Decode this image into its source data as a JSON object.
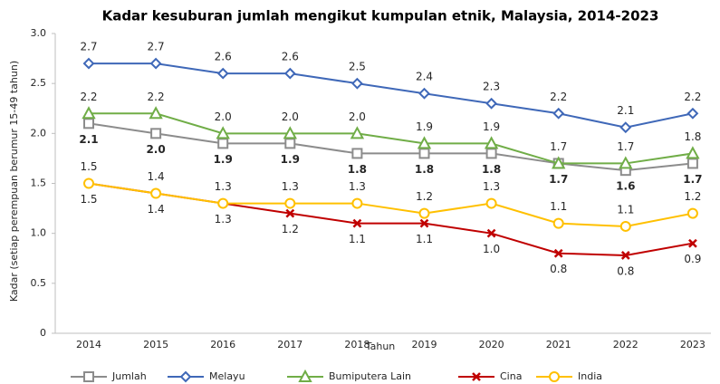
{
  "chart_data": {
    "type": "line",
    "title": "Kadar kesuburan jumlah mengikut kumpulan etnik, Malaysia, 2014-2023",
    "x_label": "Tahun",
    "y_label": "Kadar (setiap perempuan berumur 15-49 tahun)",
    "categories": [
      "2014",
      "2015",
      "2016",
      "2017",
      "2018",
      "2019",
      "2020",
      "2021",
      "2022",
      "2023"
    ],
    "ylim": [
      0,
      3
    ],
    "yticks": [
      0,
      0.5,
      {
        "value": 1,
        "label": "1.0"
      },
      1.5,
      {
        "value": 2,
        "label": "2.0"
      },
      2.5,
      {
        "value": 3,
        "label": "3.0"
      }
    ],
    "grid": false,
    "legend": "bottom",
    "series": [
      {
        "name": "Jumlah",
        "color": "#8c8c8c",
        "marker": "square",
        "values": [
          2.1,
          2.0,
          1.9,
          1.9,
          1.8,
          1.8,
          1.8,
          1.7,
          1.63,
          1.7
        ],
        "value_labels": [
          "2.1",
          "2.0",
          "1.9",
          "1.9",
          "1.8",
          "1.8",
          "1.8",
          "1.7",
          "1.6",
          "1.7"
        ]
      },
      {
        "name": "Melayu",
        "color": "#3f68b8",
        "marker": "diamond",
        "values": [
          2.7,
          2.7,
          2.6,
          2.6,
          2.5,
          2.4,
          2.3,
          2.2,
          2.06,
          2.2
        ],
        "value_labels": [
          "2.7",
          "2.7",
          "2.6",
          "2.6",
          "2.5",
          "2.4",
          "2.3",
          "2.2",
          "2.1",
          "2.2"
        ]
      },
      {
        "name": "Bumiputera Lain",
        "color": "#70ad47",
        "marker": "triangle",
        "values": [
          2.2,
          2.2,
          2.0,
          2.0,
          2.0,
          1.9,
          1.9,
          1.7,
          1.7,
          1.8
        ],
        "value_labels": [
          "2.2",
          "2.2",
          "2.0",
          "2.0",
          "2.0",
          "1.9",
          "1.9",
          "1.7",
          "1.7",
          "1.8"
        ]
      },
      {
        "name": "Cina",
        "color": "#c00000",
        "marker": "x",
        "values": [
          1.5,
          1.4,
          1.3,
          1.2,
          1.1,
          1.1,
          1.0,
          0.8,
          0.78,
          0.9
        ],
        "value_labels": [
          "1.5",
          "1.4",
          "1.3",
          "1.2",
          "1.1",
          "1.1",
          "1.0",
          "0.8",
          "0.8",
          "0.9"
        ]
      },
      {
        "name": "India",
        "color": "#ffc000",
        "marker": "circle",
        "values": [
          1.5,
          1.4,
          1.3,
          1.3,
          1.3,
          1.2,
          1.3,
          1.1,
          1.07,
          1.2
        ],
        "value_labels": [
          "1.5",
          "1.4",
          "1.3",
          "1.3",
          "1.3",
          "1.2",
          "1.3",
          "1.1",
          "1.1",
          "1.2"
        ]
      }
    ]
  }
}
